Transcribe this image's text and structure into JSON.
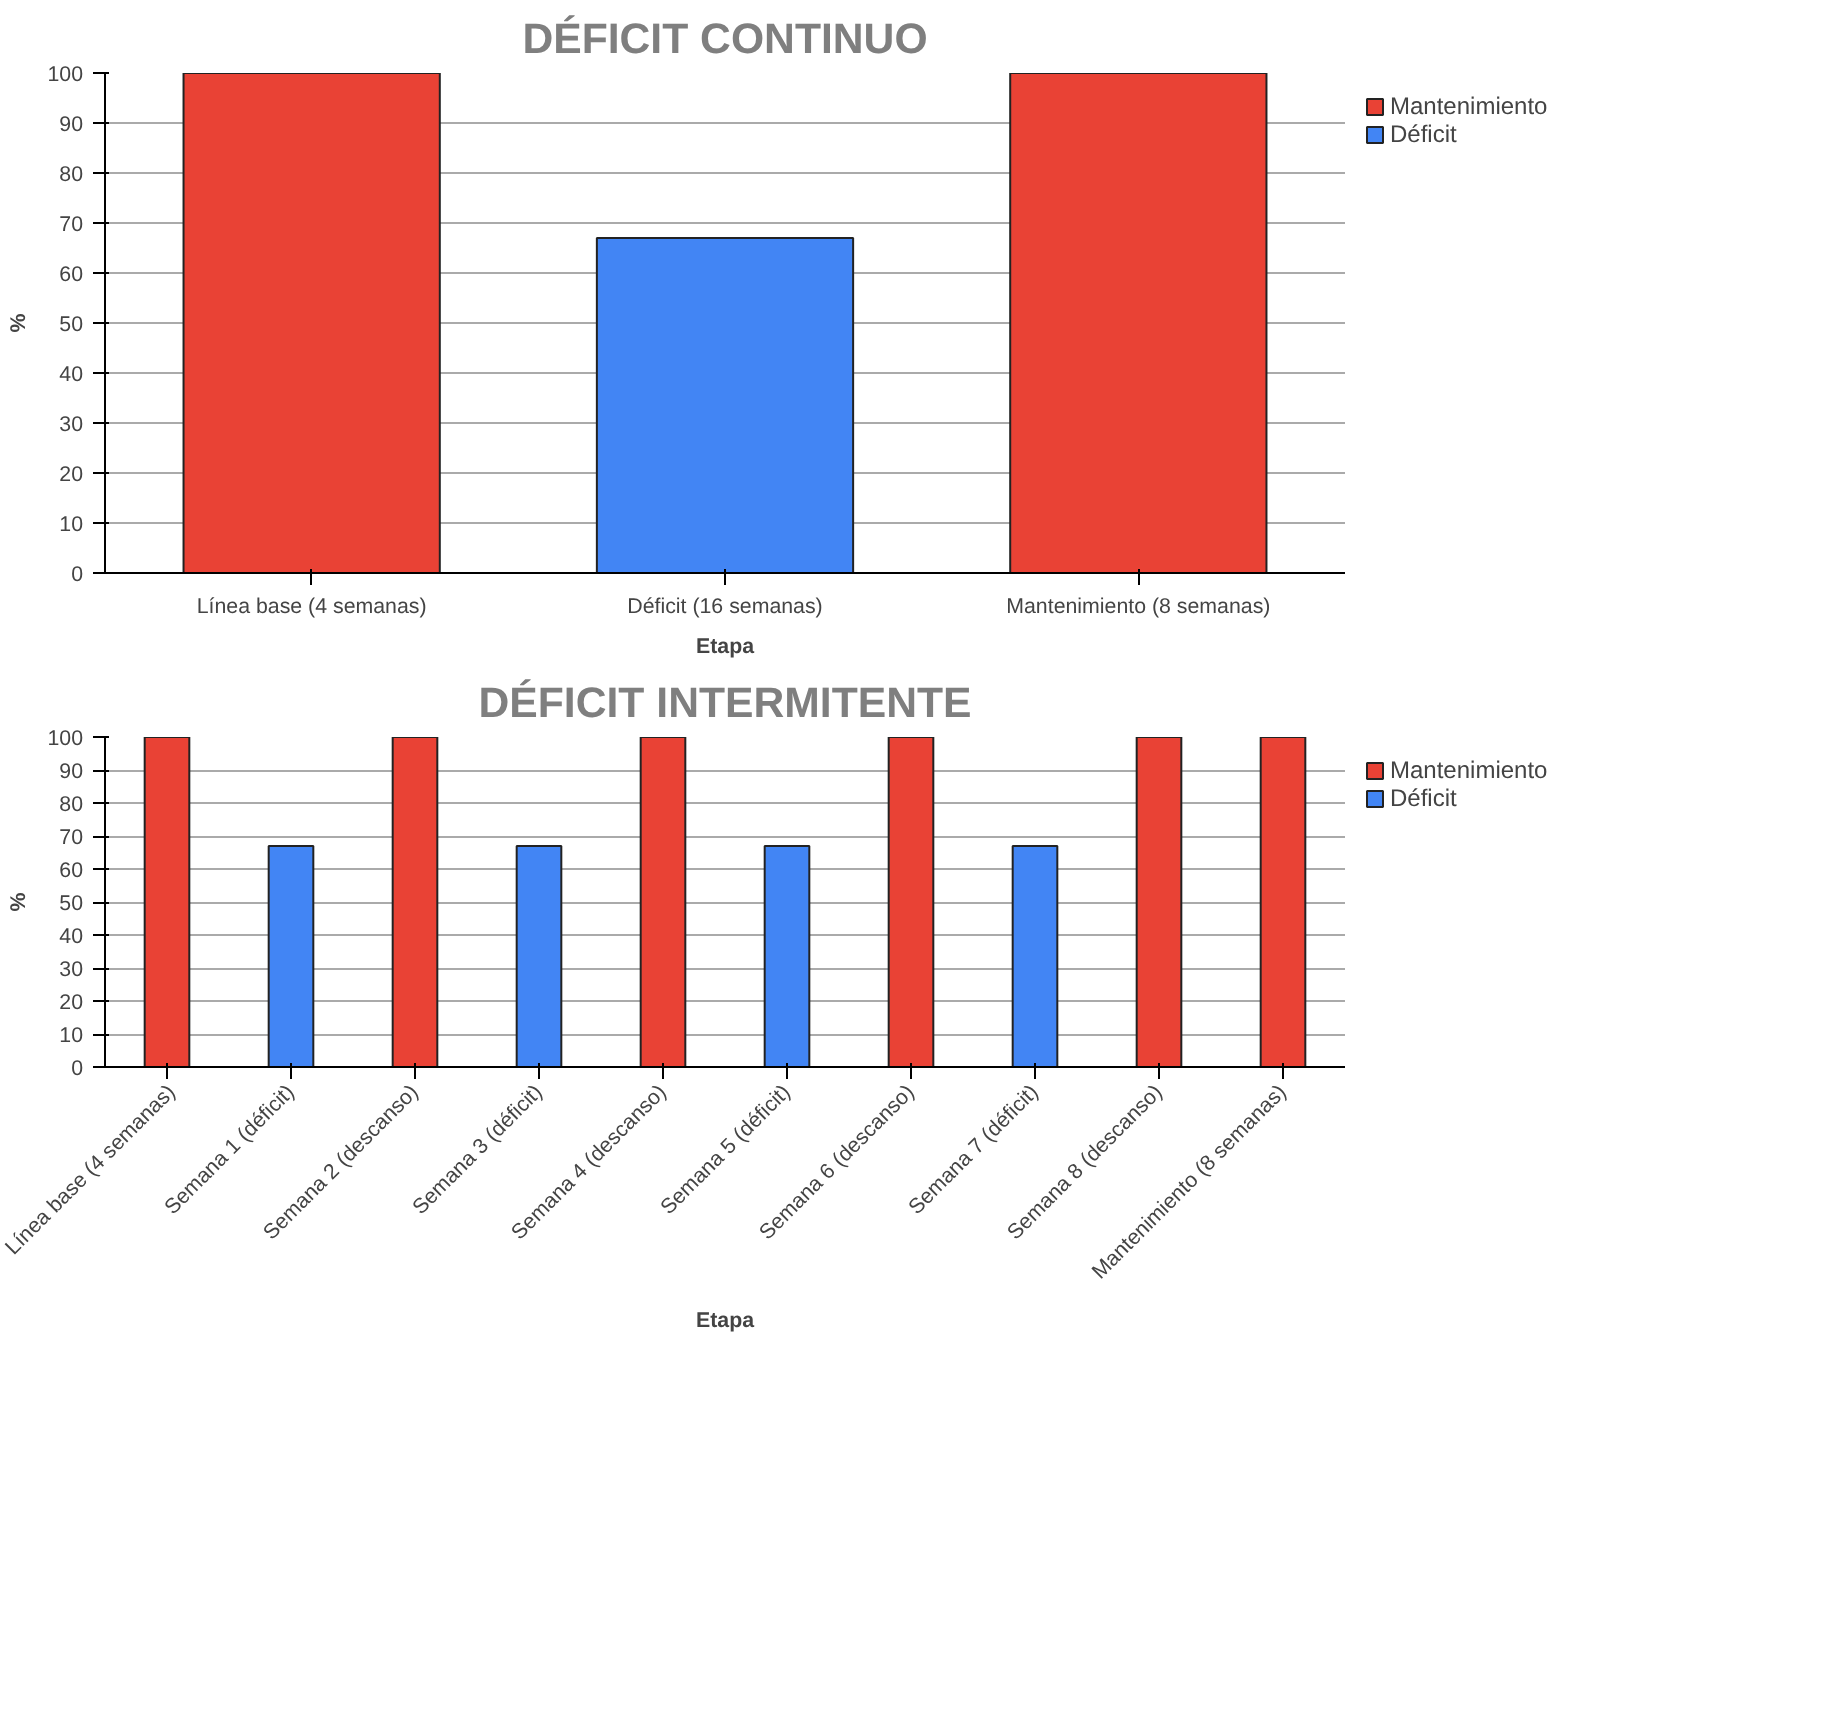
{
  "chart_data": [
    {
      "type": "bar",
      "title": "DÉFICIT CONTINUO",
      "xlabel": "Etapa",
      "ylabel": "%",
      "categories": [
        "Línea base (4 semanas)",
        "Déficit (16 semanas)",
        "Mantenimiento (8 semanas)"
      ],
      "ylim": [
        0,
        100
      ],
      "yticks": [
        0,
        10,
        20,
        30,
        40,
        50,
        60,
        70,
        80,
        90,
        100
      ],
      "grid": "y",
      "legend": "right",
      "series": [
        {
          "name": "Mantenimiento",
          "color": "#e94235",
          "values": [
            100,
            null,
            100
          ]
        },
        {
          "name": "Déficit",
          "color": "#4285f4",
          "values": [
            null,
            67,
            null
          ]
        }
      ]
    },
    {
      "type": "bar",
      "title": "DÉFICIT INTERMITENTE",
      "xlabel": "Etapa",
      "ylabel": "%",
      "categories": [
        "Línea base (4 semanas)",
        "Semana 1 (déficit)",
        "Semana 2 (descanso)",
        "Semana 3 (déficit)",
        "Semana 4 (descanso)",
        "Semana 5 (déficit)",
        "Semana 6 (descanso)",
        "Semana 7 (déficit)",
        "Semana 8 (descanso)",
        "Mantenimiento (8 semanas)"
      ],
      "ylim": [
        0,
        100
      ],
      "yticks": [
        0,
        10,
        20,
        30,
        40,
        50,
        60,
        70,
        80,
        90,
        100
      ],
      "grid": "y",
      "legend": "right",
      "series": [
        {
          "name": "Mantenimiento",
          "color": "#e94235",
          "values": [
            100,
            null,
            100,
            null,
            100,
            null,
            100,
            null,
            100,
            100
          ]
        },
        {
          "name": "Déficit",
          "color": "#4285f4",
          "values": [
            null,
            67,
            null,
            67,
            null,
            67,
            null,
            67,
            null,
            null
          ]
        }
      ]
    }
  ]
}
